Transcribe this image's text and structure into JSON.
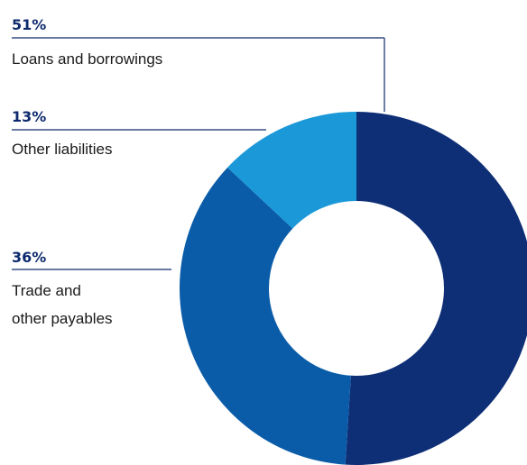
{
  "chart_data": {
    "type": "pie",
    "title": "",
    "categories": [
      "Loans and borrowings",
      "Other liabilities",
      "Trade and other payables"
    ],
    "values": [
      51,
      13,
      36
    ],
    "unit": "%",
    "series": [
      {
        "values": [
          51,
          13,
          36
        ]
      }
    ],
    "donut": true,
    "legend": "none",
    "colors": {
      "Loans and borrowings": "#0e2f76",
      "Other liabilities": "#1b98d8",
      "Trade and other payables": "#0a5ca8"
    }
  },
  "annotations": [
    {
      "pct": "51%",
      "lines": [
        "Loans and borrowings"
      ]
    },
    {
      "pct": "13%",
      "lines": [
        "Other liabilities"
      ]
    },
    {
      "pct": "36%",
      "lines": [
        "Trade and",
        "other payables"
      ]
    }
  ]
}
